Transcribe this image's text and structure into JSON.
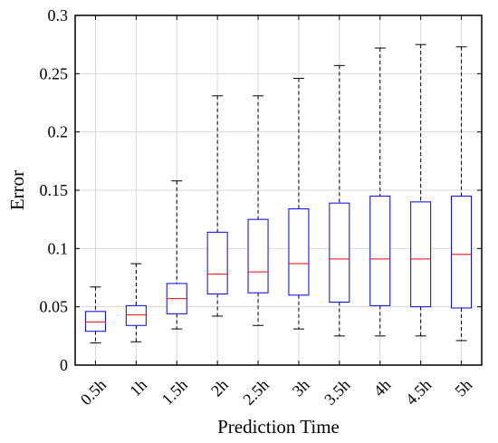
{
  "chart_data": {
    "type": "boxplot",
    "title": "",
    "xlabel": "Prediction Time",
    "ylabel": "Error",
    "ylim": [
      0,
      0.3
    ],
    "yticks": [
      0,
      0.05,
      0.1,
      0.15,
      0.2,
      0.25,
      0.3
    ],
    "ytick_labels": [
      "0",
      "0.05",
      "0.1",
      "0.15",
      "0.2",
      "0.25",
      "0.3"
    ],
    "grid": true,
    "box_color": "#0000ff",
    "median_color": "#ff0000",
    "whisker_color": "#000000",
    "categories": [
      "0.5h",
      "1h",
      "1.5h",
      "2h",
      "2.5h",
      "3h",
      "3.5h",
      "4h",
      "4.5h",
      "5h"
    ],
    "boxes": [
      {
        "min": 0.019,
        "q1": 0.029,
        "median": 0.037,
        "q3": 0.046,
        "max": 0.067
      },
      {
        "min": 0.02,
        "q1": 0.034,
        "median": 0.043,
        "q3": 0.051,
        "max": 0.087
      },
      {
        "min": 0.031,
        "q1": 0.044,
        "median": 0.057,
        "q3": 0.07,
        "max": 0.158
      },
      {
        "min": 0.042,
        "q1": 0.061,
        "median": 0.078,
        "q3": 0.114,
        "max": 0.231
      },
      {
        "min": 0.034,
        "q1": 0.062,
        "median": 0.08,
        "q3": 0.125,
        "max": 0.231
      },
      {
        "min": 0.031,
        "q1": 0.06,
        "median": 0.087,
        "q3": 0.134,
        "max": 0.246
      },
      {
        "min": 0.025,
        "q1": 0.054,
        "median": 0.091,
        "q3": 0.139,
        "max": 0.257
      },
      {
        "min": 0.025,
        "q1": 0.051,
        "median": 0.091,
        "q3": 0.145,
        "max": 0.272
      },
      {
        "min": 0.025,
        "q1": 0.05,
        "median": 0.091,
        "q3": 0.14,
        "max": 0.275
      },
      {
        "min": 0.021,
        "q1": 0.049,
        "median": 0.095,
        "q3": 0.145,
        "max": 0.273
      }
    ]
  }
}
